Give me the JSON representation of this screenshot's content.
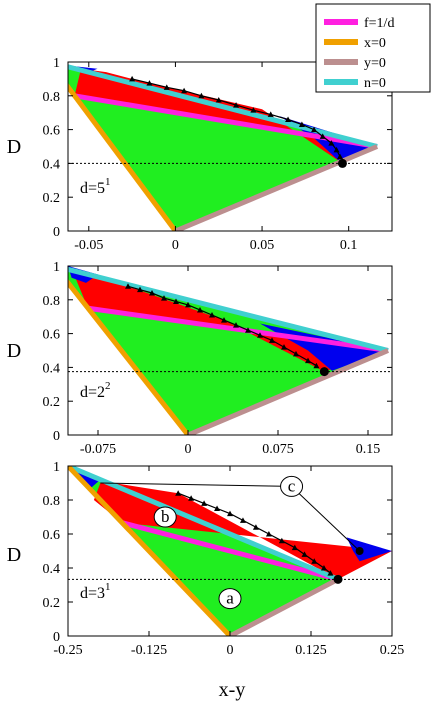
{
  "legend": [
    {
      "label": "f=1/d",
      "color": "#ff20e0"
    },
    {
      "label": "x=0",
      "color": "#f0a000"
    },
    {
      "label": "y=0",
      "color": "#bc8f8f"
    },
    {
      "label": "n=0",
      "color": "#40d0d0"
    }
  ],
  "colors": {
    "green": "#20ee20",
    "red": "#ff0000",
    "blue": "#0000ee",
    "boundary_n0": "#40d0d0",
    "boundary_x0": "#f0a000",
    "boundary_y0": "#bc8f8f",
    "f_line": "#ff20e0",
    "marker": "#000000"
  },
  "xlabel": "x-y",
  "ylabel": "D",
  "chart_data": [
    {
      "type": "area",
      "panel_label": {
        "base": "d=5",
        "sup": "1"
      },
      "xlim": [
        -0.062,
        0.125
      ],
      "ylim": [
        0,
        1
      ],
      "xticks": [
        -0.05,
        0,
        0.05,
        0.1
      ],
      "xtick_labels": [
        "-0.05",
        "0",
        "0.05",
        "0.1"
      ],
      "yticks": [
        0,
        0.2,
        0.4,
        0.6,
        0.8,
        1
      ],
      "ytick_labels": [
        "0",
        "0.2",
        "0.4",
        "0.6",
        "0.8",
        "1"
      ],
      "dashed_hline": 0.4,
      "f_line": [
        [
          -0.0582,
          0.8
        ],
        [
          0.1164,
          0.5
        ]
      ],
      "red_region": [
        [
          -0.0545,
          0.96
        ],
        [
          -0.04,
          0.94
        ],
        [
          -0.025,
          0.9
        ],
        [
          0.05,
          0.72
        ],
        [
          0.0964,
          0.4
        ],
        [
          0.1164,
          0.5
        ],
        [
          -0.0582,
          0.8
        ]
      ],
      "blue_regions": [
        [
          [
            -0.0582,
            0.975
          ],
          [
            -0.045,
            0.96
          ],
          [
            -0.052,
            0.93
          ]
        ],
        [
          [
            0.06,
            0.68
          ],
          [
            0.1164,
            0.5
          ],
          [
            0.095,
            0.41
          ],
          [
            0.08,
            0.55
          ]
        ]
      ],
      "triangles": [
        [
          -0.025,
          0.9
        ],
        [
          -0.015,
          0.875
        ],
        [
          -0.005,
          0.85
        ],
        [
          0.005,
          0.83
        ],
        [
          0.015,
          0.8
        ],
        [
          0.025,
          0.775
        ],
        [
          0.035,
          0.745
        ],
        [
          0.045,
          0.715
        ],
        [
          0.055,
          0.69
        ],
        [
          0.065,
          0.66
        ],
        [
          0.073,
          0.63
        ],
        [
          0.08,
          0.6
        ],
        [
          0.085,
          0.56
        ],
        [
          0.09,
          0.52
        ],
        [
          0.093,
          0.48
        ],
        [
          0.095,
          0.44
        ]
      ],
      "filled_point": [
        0.0964,
        0.4
      ]
    },
    {
      "type": "area",
      "panel_label": {
        "base": "d=2",
        "sup": "2"
      },
      "xlim": [
        -0.1,
        0.17
      ],
      "ylim": [
        0,
        1
      ],
      "xticks": [
        -0.075,
        0,
        0.075,
        0.15
      ],
      "xtick_labels": [
        "-0.075",
        "0",
        "0.075",
        "0.15"
      ],
      "yticks": [
        0,
        0.2,
        0.4,
        0.6,
        0.8,
        1
      ],
      "ytick_labels": [
        "0",
        "0.2",
        "0.4",
        "0.6",
        "0.8",
        "1"
      ],
      "dashed_hline": 0.375,
      "f_line": [
        [
          -0.0833,
          0.75
        ],
        [
          0.1667,
          0.5
        ]
      ],
      "red_region": [
        [
          -0.095,
          0.95
        ],
        [
          -0.06,
          0.92
        ],
        [
          -0.05,
          0.88
        ],
        [
          0.03,
          0.68
        ],
        [
          0.1136,
          0.375
        ],
        [
          0.1667,
          0.5
        ],
        [
          -0.0833,
          0.75
        ]
      ],
      "blue_regions": [
        [
          [
            -0.1,
            1.0
          ],
          [
            -0.075,
            0.95
          ],
          [
            -0.085,
            0.9
          ],
          [
            -0.097,
            0.93
          ]
        ],
        [
          [
            0.06,
            0.66
          ],
          [
            0.1667,
            0.5
          ],
          [
            0.12,
            0.38
          ],
          [
            0.1,
            0.5
          ]
        ]
      ],
      "triangles": [
        [
          -0.05,
          0.88
        ],
        [
          -0.04,
          0.86
        ],
        [
          -0.03,
          0.84
        ],
        [
          -0.02,
          0.81
        ],
        [
          -0.01,
          0.79
        ],
        [
          0.0,
          0.77
        ],
        [
          0.01,
          0.74
        ],
        [
          0.02,
          0.71
        ],
        [
          0.03,
          0.68
        ],
        [
          0.04,
          0.65
        ],
        [
          0.05,
          0.62
        ],
        [
          0.06,
          0.59
        ],
        [
          0.07,
          0.56
        ],
        [
          0.08,
          0.52
        ],
        [
          0.09,
          0.48
        ],
        [
          0.1,
          0.44
        ],
        [
          0.107,
          0.41
        ]
      ],
      "filled_point": [
        0.1136,
        0.375
      ]
    },
    {
      "type": "area",
      "panel_label": {
        "base": "d=3",
        "sup": "1"
      },
      "xlim": [
        -0.25,
        0.25
      ],
      "ylim": [
        0,
        1
      ],
      "xticks": [
        -0.25,
        -0.125,
        0,
        0.125,
        0.25
      ],
      "xtick_labels": [
        "-0.25",
        "-0.125",
        "0",
        "0.125",
        "0.25"
      ],
      "yticks": [
        0,
        0.2,
        0.4,
        0.6,
        0.8,
        1
      ],
      "ytick_labels": [
        "0",
        "0.2",
        "0.4",
        "0.6",
        "0.8",
        "1"
      ],
      "dashed_hline": 0.333,
      "f_line": [
        [
          -0.1667,
          0.6667
        ],
        [
          0.1667,
          0.3333
        ]
      ],
      "red_region": [
        [
          -0.2,
          0.9
        ],
        [
          -0.18,
          0.9
        ],
        [
          -0.08,
          0.84
        ],
        [
          0.1667,
          0.3333
        ],
        [
          0.25,
          0.5
        ],
        [
          -0.1667,
          0.6667
        ],
        [
          -0.21,
          0.8
        ]
      ],
      "blue_regions": [
        [
          [
            -0.25,
            1.0
          ],
          [
            -0.2,
            0.92
          ],
          [
            -0.215,
            0.87
          ],
          [
            -0.24,
            0.95
          ]
        ],
        [
          [
            0.18,
            0.58
          ],
          [
            0.25,
            0.5
          ],
          [
            0.2,
            0.44
          ],
          [
            0.19,
            0.5
          ]
        ]
      ],
      "triangles": [
        [
          -0.08,
          0.84
        ],
        [
          -0.06,
          0.81
        ],
        [
          -0.04,
          0.78
        ],
        [
          -0.02,
          0.75
        ],
        [
          0.0,
          0.72
        ],
        [
          0.02,
          0.68
        ],
        [
          0.04,
          0.64
        ],
        [
          0.06,
          0.6
        ],
        [
          0.08,
          0.56
        ],
        [
          0.1,
          0.52
        ],
        [
          0.115,
          0.48
        ],
        [
          0.13,
          0.44
        ],
        [
          0.145,
          0.4
        ],
        [
          0.155,
          0.37
        ]
      ],
      "filled_point": [
        0.1667,
        0.3333
      ],
      "extra_point": [
        0.2,
        0.5
      ],
      "labels": [
        {
          "text": "a",
          "x": 0.0,
          "y": 0.22
        },
        {
          "text": "b",
          "x": -0.1,
          "y": 0.7
        },
        {
          "text": "c",
          "x": 0.095,
          "y": 0.88
        }
      ],
      "callout_c_targets": [
        [
          -0.2,
          0.9
        ],
        [
          0.2,
          0.5
        ]
      ]
    }
  ]
}
